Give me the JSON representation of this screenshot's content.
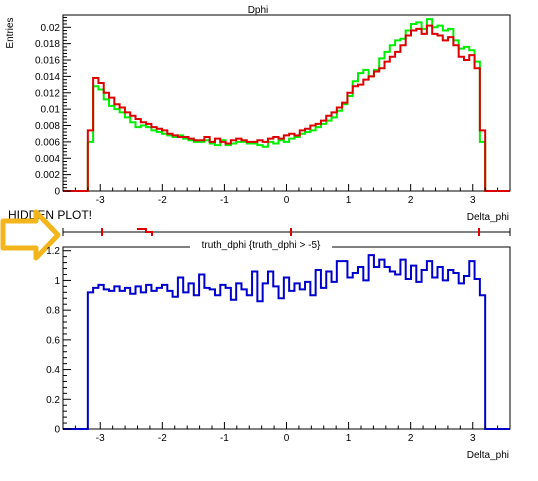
{
  "annotation": {
    "text": "HIDDEN PLOT!",
    "arrow_color": "#f2b61c"
  },
  "chart_data": [
    {
      "type": "line",
      "title": "Dphi",
      "ylabel": "Entries",
      "xlabel": "Delta_phi",
      "xlim": [
        -3.6,
        3.6
      ],
      "ylim": [
        0,
        0.0215
      ],
      "xticks": [
        -3,
        -2,
        -1,
        0,
        1,
        2,
        3
      ],
      "xtick_labels": [
        "-3",
        "-2",
        "-1",
        "0",
        "1",
        "2",
        "3"
      ],
      "yticks": [
        0,
        0.002,
        0.004,
        0.006,
        0.008,
        0.01,
        0.012,
        0.014,
        0.016,
        0.018,
        0.02
      ],
      "ytick_labels": [
        "0",
        "0.002",
        "0.004",
        "0.006",
        "0.008",
        "0.01",
        "0.012",
        "0.014",
        "0.016",
        "0.018",
        "0.02"
      ],
      "bin_range": [
        -3.2,
        3.2
      ],
      "series": [
        {
          "color": "#00ee00",
          "values": [
            0.006,
            0.0128,
            0.0124,
            0.0112,
            0.0104,
            0.01,
            0.0096,
            0.009,
            0.0084,
            0.0078,
            0.008,
            0.0078,
            0.0074,
            0.0072,
            0.007,
            0.0068,
            0.0066,
            0.0068,
            0.0064,
            0.0062,
            0.006,
            0.006,
            0.0062,
            0.0058,
            0.0056,
            0.0062,
            0.0056,
            0.0058,
            0.006,
            0.006,
            0.0058,
            0.0058,
            0.0056,
            0.0054,
            0.006,
            0.0058,
            0.0062,
            0.006,
            0.0064,
            0.0066,
            0.007,
            0.0072,
            0.0074,
            0.0078,
            0.0082,
            0.0086,
            0.009,
            0.0098,
            0.0106,
            0.0116,
            0.0134,
            0.0144,
            0.0148,
            0.014,
            0.0148,
            0.0162,
            0.017,
            0.0178,
            0.0184,
            0.0186,
            0.0196,
            0.0204,
            0.0206,
            0.0198,
            0.021,
            0.02,
            0.0202,
            0.0196,
            0.0198,
            0.0184,
            0.0174,
            0.0176,
            0.0172,
            0.0158,
            0.006
          ]
        },
        {
          "color": "#dd0000",
          "values": [
            0.0074,
            0.0138,
            0.0132,
            0.012,
            0.0114,
            0.0106,
            0.0102,
            0.0096,
            0.0092,
            0.0088,
            0.0084,
            0.0082,
            0.0078,
            0.0076,
            0.0074,
            0.007,
            0.0068,
            0.0066,
            0.0066,
            0.0064,
            0.0062,
            0.0062,
            0.0066,
            0.006,
            0.0064,
            0.006,
            0.0058,
            0.0062,
            0.0064,
            0.0062,
            0.006,
            0.006,
            0.0062,
            0.006,
            0.0064,
            0.0066,
            0.0064,
            0.0068,
            0.007,
            0.0068,
            0.0074,
            0.0076,
            0.008,
            0.0082,
            0.0086,
            0.0092,
            0.0096,
            0.0102,
            0.0108,
            0.012,
            0.0128,
            0.013,
            0.0136,
            0.014,
            0.0146,
            0.015,
            0.0158,
            0.0164,
            0.017,
            0.0178,
            0.019,
            0.0196,
            0.0198,
            0.0192,
            0.0202,
            0.0192,
            0.019,
            0.0184,
            0.0188,
            0.0178,
            0.0164,
            0.016,
            0.0166,
            0.015,
            0.0074
          ]
        }
      ]
    },
    {
      "type": "line",
      "title": "truth_dphi  {truth_dphi > -5}",
      "xlabel": "Delta_phi",
      "ylabel": "",
      "xlim": [
        -3.6,
        3.6
      ],
      "ylim": [
        0,
        1.225
      ],
      "xticks": [
        -3,
        -2,
        -1,
        0,
        1,
        2,
        3
      ],
      "xtick_labels": [
        "-3",
        "-2",
        "-1",
        "0",
        "1",
        "2",
        "3"
      ],
      "yticks": [
        0,
        0.2,
        0.4,
        0.6,
        0.8,
        1,
        1.2
      ],
      "ytick_labels": [
        "0",
        "0.2",
        "0.4",
        "0.6",
        "0.8",
        "1",
        "1.2"
      ],
      "bin_range": [
        -3.2,
        3.2
      ],
      "series": [
        {
          "color": "#0000cc",
          "values": [
            0.92,
            0.95,
            0.97,
            0.94,
            0.93,
            0.96,
            0.93,
            0.95,
            0.91,
            0.96,
            0.92,
            0.97,
            0.93,
            0.95,
            0.97,
            0.93,
            0.89,
            1.02,
            0.92,
            0.98,
            0.9,
            1.04,
            0.95,
            0.94,
            0.9,
            0.97,
            0.95,
            0.87,
            0.98,
            0.94,
            0.9,
            1.06,
            0.86,
            0.98,
            1.06,
            0.96,
            0.88,
            1.02,
            0.93,
            0.98,
            0.94,
            0.99,
            0.9,
            1.07,
            0.95,
            1.06,
            0.99,
            1.13,
            1.13,
            1.02,
            1.05,
            1.09,
            1.0,
            1.17,
            1.09,
            1.14,
            1.09,
            1.06,
            1.04,
            1.14,
            1.01,
            1.1,
            0.99,
            1.07,
            1.13,
            1.02,
            1.09,
            1.0,
            1.07,
            1.05,
            0.98,
            1.03,
            1.13,
            1.01,
            0.9
          ]
        }
      ]
    }
  ]
}
